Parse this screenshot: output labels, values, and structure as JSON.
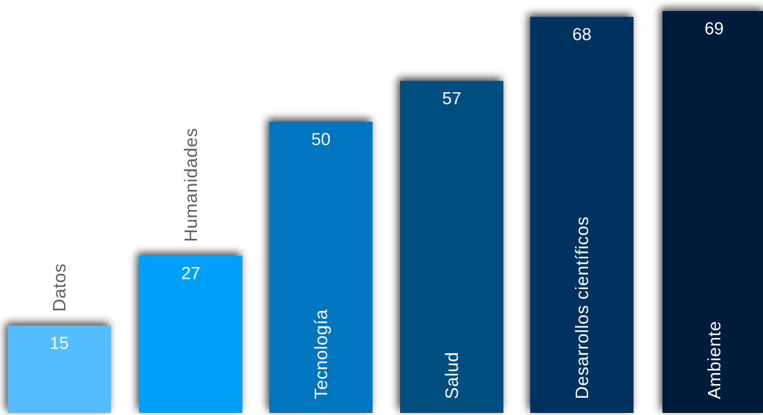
{
  "chart_data": {
    "type": "bar",
    "categories": [
      "Datos",
      "Humanidades",
      "Tecnología",
      "Salud",
      "Desarrollos científicos",
      "Ambiente"
    ],
    "values": [
      15,
      27,
      50,
      57,
      68,
      69
    ],
    "title": "",
    "xlabel": "",
    "ylabel": "",
    "ylim": [
      0,
      70
    ],
    "grid": false,
    "legend": "none",
    "data_labels": true,
    "bar_colors": [
      "#55bdff",
      "#00a0fa",
      "#0274c0",
      "#014d80",
      "#02325f",
      "#001b3a"
    ],
    "label_colors": [
      "#5f5f5f",
      "#5f5f5f",
      "#ffffff",
      "#ffffff",
      "#ffffff",
      "#ffffff"
    ]
  }
}
